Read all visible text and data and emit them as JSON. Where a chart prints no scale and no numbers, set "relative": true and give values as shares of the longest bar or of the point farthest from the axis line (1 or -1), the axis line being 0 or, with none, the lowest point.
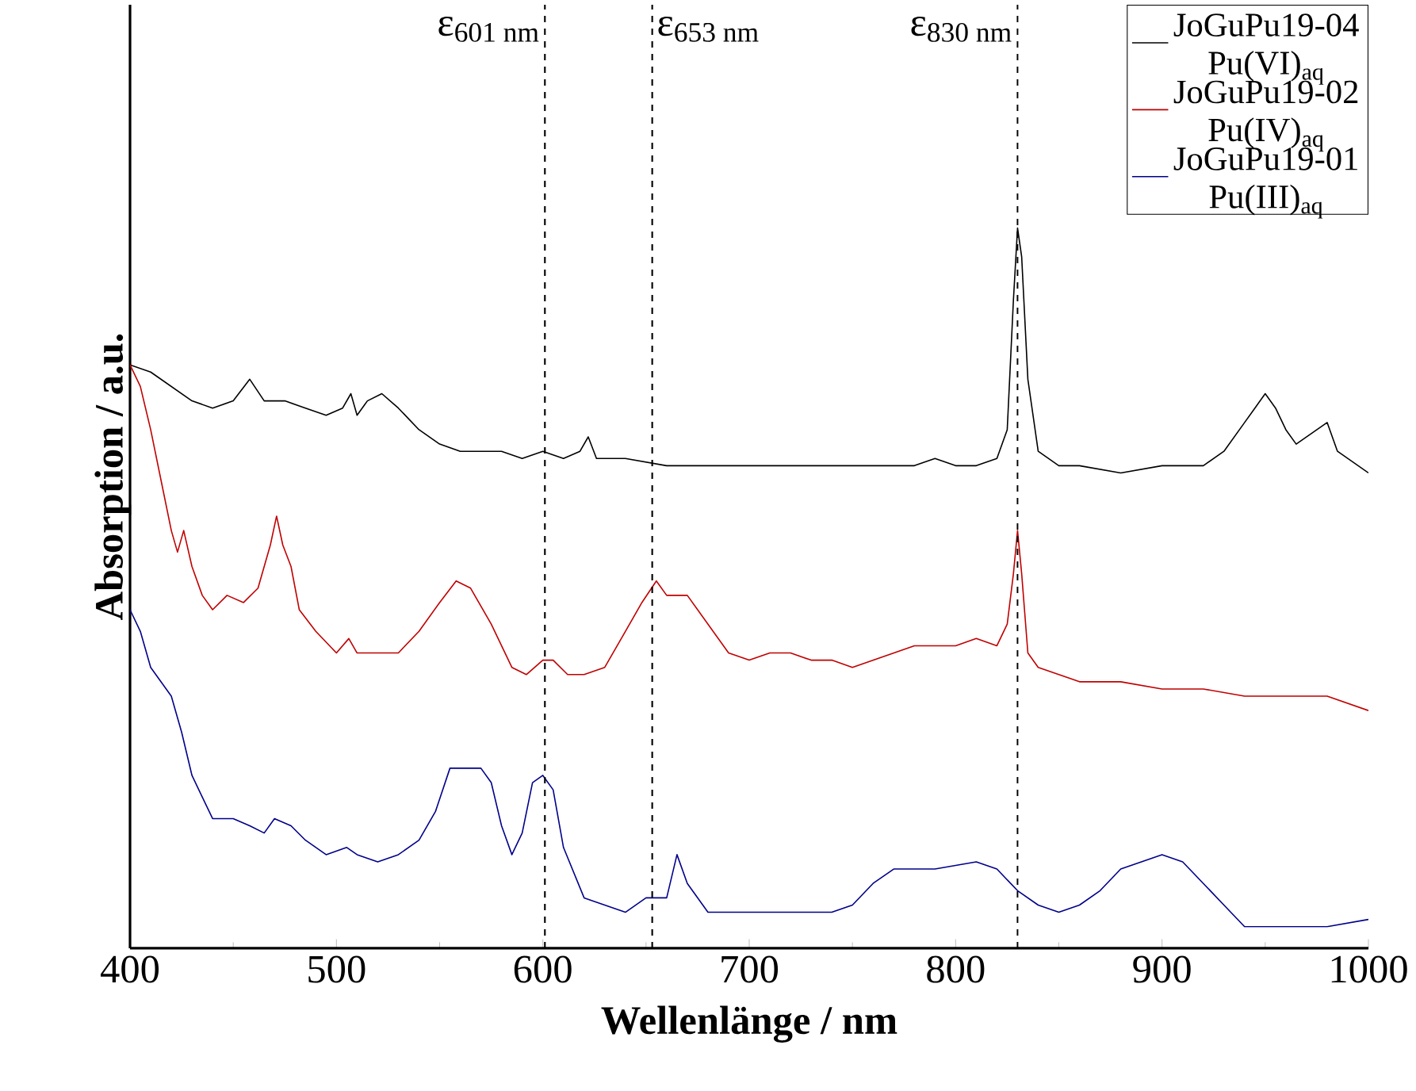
{
  "chart_data": {
    "type": "line",
    "relative": true,
    "xlabel": "Wellenlänge / nm",
    "ylabel": "Absorption / a.u.",
    "xlim": [
      400,
      1000
    ],
    "xticks": [
      400,
      500,
      600,
      700,
      800,
      900,
      1000
    ],
    "legend": "top right",
    "grid": false,
    "marker": "none",
    "line_style": "solid",
    "ref_lines": [
      {
        "axis": "x",
        "value": 601,
        "label": "ε$_{601 nm}$",
        "line_style": "dashed",
        "color": "#000000"
      },
      {
        "axis": "x",
        "value": 653,
        "label": "ε$_{653 nm}$",
        "line_style": "dashed",
        "color": "#000000"
      },
      {
        "axis": "x",
        "value": 830,
        "label": "ε$_{830 nm}$",
        "line_style": "dashed",
        "color": "#000000"
      }
    ],
    "series": [
      {
        "name": "JoGuPu19-04 Pu(VI)$_{aq}$",
        "color": "#000000",
        "x": [
          400,
          410,
          420,
          430,
          440,
          450,
          458,
          465,
          475,
          485,
          495,
          503,
          507,
          510,
          515,
          522,
          530,
          540,
          550,
          560,
          570,
          580,
          590,
          600,
          610,
          618,
          622,
          626,
          640,
          660,
          680,
          700,
          720,
          740,
          760,
          775,
          780,
          790,
          800,
          810,
          820,
          825,
          828,
          830,
          832,
          835,
          840,
          850,
          860,
          880,
          900,
          920,
          930,
          940,
          945,
          950,
          955,
          960,
          965,
          970,
          975,
          980,
          985,
          990,
          995,
          1000
        ],
        "values": [
          0.81,
          0.8,
          0.78,
          0.76,
          0.75,
          0.76,
          0.79,
          0.76,
          0.76,
          0.75,
          0.74,
          0.75,
          0.77,
          0.74,
          0.76,
          0.77,
          0.75,
          0.72,
          0.7,
          0.69,
          0.69,
          0.69,
          0.68,
          0.69,
          0.68,
          0.69,
          0.71,
          0.68,
          0.68,
          0.67,
          0.67,
          0.67,
          0.67,
          0.67,
          0.67,
          0.67,
          0.67,
          0.68,
          0.67,
          0.67,
          0.68,
          0.72,
          0.9,
          1.0,
          0.96,
          0.79,
          0.69,
          0.67,
          0.67,
          0.66,
          0.67,
          0.67,
          0.69,
          0.73,
          0.75,
          0.77,
          0.75,
          0.72,
          0.7,
          0.71,
          0.72,
          0.73,
          0.69,
          0.68,
          0.67,
          0.66
        ]
      },
      {
        "name": "JoGuPu19-02 Pu(IV)$_{aq}$",
        "color": "#c00000",
        "x": [
          400,
          405,
          410,
          415,
          420,
          423,
          426,
          430,
          435,
          440,
          447,
          455,
          462,
          468,
          471,
          474,
          478,
          482,
          490,
          500,
          506,
          510,
          520,
          530,
          540,
          550,
          558,
          565,
          575,
          585,
          592,
          600,
          605,
          612,
          620,
          630,
          640,
          648,
          655,
          660,
          670,
          680,
          690,
          700,
          710,
          720,
          730,
          740,
          750,
          760,
          770,
          780,
          790,
          800,
          810,
          820,
          825,
          828,
          830,
          832,
          835,
          840,
          850,
          860,
          880,
          900,
          920,
          940,
          960,
          980,
          1000
        ],
        "values": [
          0.81,
          0.78,
          0.72,
          0.65,
          0.58,
          0.55,
          0.58,
          0.53,
          0.49,
          0.47,
          0.49,
          0.48,
          0.5,
          0.56,
          0.6,
          0.56,
          0.53,
          0.47,
          0.44,
          0.41,
          0.43,
          0.41,
          0.41,
          0.41,
          0.44,
          0.48,
          0.51,
          0.5,
          0.45,
          0.39,
          0.38,
          0.4,
          0.4,
          0.38,
          0.38,
          0.39,
          0.44,
          0.48,
          0.51,
          0.49,
          0.49,
          0.45,
          0.41,
          0.4,
          0.41,
          0.41,
          0.4,
          0.4,
          0.39,
          0.4,
          0.41,
          0.42,
          0.42,
          0.42,
          0.43,
          0.42,
          0.45,
          0.52,
          0.58,
          0.52,
          0.41,
          0.39,
          0.38,
          0.37,
          0.37,
          0.36,
          0.36,
          0.35,
          0.35,
          0.35,
          0.33
        ]
      },
      {
        "name": "JoGuPu19-01 Pu(III)$_{aq}$",
        "color": "#00008b",
        "x": [
          400,
          405,
          410,
          420,
          425,
          430,
          440,
          450,
          458,
          465,
          470,
          478,
          485,
          495,
          505,
          510,
          520,
          530,
          540,
          548,
          555,
          560,
          570,
          575,
          580,
          585,
          590,
          595,
          600,
          605,
          610,
          620,
          630,
          640,
          650,
          660,
          665,
          670,
          680,
          700,
          720,
          740,
          750,
          760,
          770,
          790,
          810,
          820,
          830,
          840,
          850,
          860,
          870,
          880,
          890,
          900,
          910,
          920,
          930,
          940,
          960,
          980,
          1000
        ],
        "values": [
          0.47,
          0.44,
          0.39,
          0.35,
          0.3,
          0.24,
          0.18,
          0.18,
          0.17,
          0.16,
          0.18,
          0.17,
          0.15,
          0.13,
          0.14,
          0.13,
          0.12,
          0.13,
          0.15,
          0.19,
          0.25,
          0.25,
          0.25,
          0.23,
          0.17,
          0.13,
          0.16,
          0.23,
          0.24,
          0.22,
          0.14,
          0.07,
          0.06,
          0.05,
          0.07,
          0.07,
          0.13,
          0.09,
          0.05,
          0.05,
          0.05,
          0.05,
          0.06,
          0.09,
          0.11,
          0.11,
          0.12,
          0.11,
          0.08,
          0.06,
          0.05,
          0.06,
          0.08,
          0.11,
          0.12,
          0.13,
          0.12,
          0.09,
          0.06,
          0.03,
          0.03,
          0.03,
          0.04
        ]
      }
    ]
  }
}
